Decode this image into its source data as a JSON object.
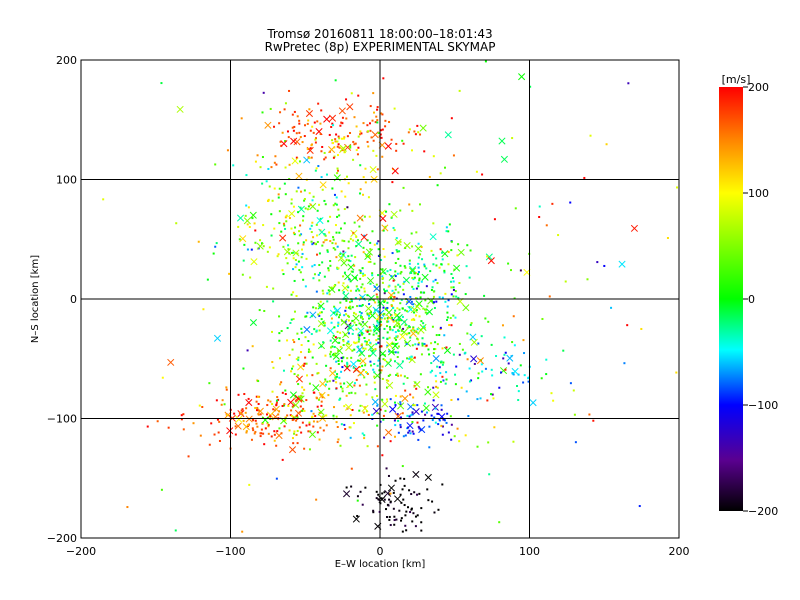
{
  "chart_data": {
    "type": "scatter",
    "title": "Tromsø 20160811 18:00:00–18:01:43",
    "subtitle": "RwPretec (8p) EXPERIMENTAL SKYMAP",
    "xlabel": "E–W location [km]",
    "ylabel": "N–S location [km]",
    "xlim": [
      -200,
      200
    ],
    "ylim": [
      -200,
      200
    ],
    "xticks": [
      "−200",
      "−100",
      "0",
      "100",
      "200"
    ],
    "yticks": [
      "−200",
      "−100",
      "0",
      "100",
      "200"
    ],
    "grid": true,
    "colorbar": {
      "label": "[m/s]",
      "range": [
        -200,
        200
      ],
      "ticks": [
        "200",
        "100",
        "0",
        "−100",
        "−200"
      ],
      "colormap": [
        "#000000",
        "#5a0090",
        "#0000ff",
        "#00ffff",
        "#00ff00",
        "#ffff00",
        "#ff8000",
        "#ff0000"
      ]
    },
    "marker_legend": "small dots and × crosses",
    "clusters": [
      {
        "x": 0,
        "y": -20,
        "sx": 28,
        "sy": 32,
        "n": 650,
        "v": 10,
        "vs": 55
      },
      {
        "x": -45,
        "y": 55,
        "sx": 28,
        "sy": 28,
        "n": 260,
        "v": 40,
        "vs": 55
      },
      {
        "x": -30,
        "y": 140,
        "sx": 25,
        "sy": 10,
        "n": 110,
        "v": 175,
        "vs": 25
      },
      {
        "x": -20,
        "y": 125,
        "sx": 30,
        "sy": 22,
        "n": 80,
        "v": 115,
        "vs": 40
      },
      {
        "x": -75,
        "y": -100,
        "sx": 30,
        "sy": 12,
        "n": 190,
        "v": 170,
        "vs": 35
      },
      {
        "x": 12,
        "y": -172,
        "sx": 12,
        "sy": 12,
        "n": 90,
        "v": -200,
        "vs": 15
      },
      {
        "x": 28,
        "y": -100,
        "sx": 15,
        "sy": 12,
        "n": 70,
        "v": -100,
        "vs": 25
      },
      {
        "x": 75,
        "y": -60,
        "sx": 20,
        "sy": 12,
        "n": 60,
        "v": -50,
        "vs": 30
      },
      {
        "x": -30,
        "y": -75,
        "sx": 30,
        "sy": 22,
        "n": 190,
        "v": 80,
        "vs": 70
      },
      {
        "x": 30,
        "y": 20,
        "sx": 25,
        "sy": 25,
        "n": 90,
        "v": 5,
        "vs": 60
      },
      {
        "x": 0,
        "y": 0,
        "sx": 95,
        "sy": 105,
        "n": 230,
        "v": 60,
        "vs": 100
      }
    ]
  }
}
